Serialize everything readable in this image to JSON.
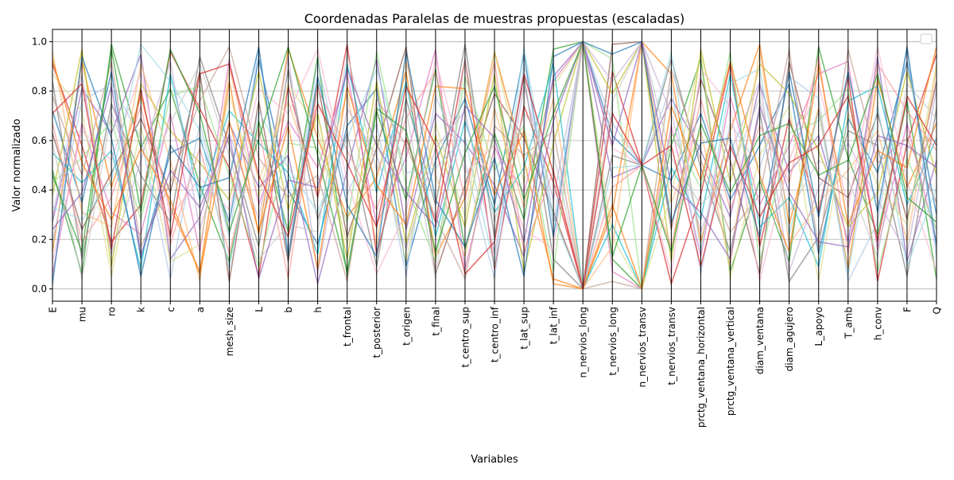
{
  "chart_data": {
    "type": "parallel-coordinates",
    "title": "Coordenadas Paralelas de muestras propuestas (escaladas)",
    "xlabel": "Variables",
    "ylabel": "Valor normalizado",
    "ylim": [
      -0.05,
      1.05
    ],
    "yticks": [
      0.0,
      0.2,
      0.4,
      0.6,
      0.8,
      1.0
    ],
    "ytick_labels": [
      "0.0",
      "0.2",
      "0.4",
      "0.6",
      "0.8",
      "1.0"
    ],
    "categories": [
      "E",
      "mu",
      "ro",
      "k",
      "c",
      "a",
      "mesh_size",
      "L",
      "b",
      "h",
      "t_frontal",
      "t_posterior",
      "t_origen",
      "t_final",
      "t_centro_sup",
      "t_centro_inf",
      "t_lat_sup",
      "t_lat_inf",
      "n_nervios_long",
      "t_nervios_long",
      "n_nervios_transv",
      "t_nervios_transv",
      "prctg_ventana_horizontal",
      "prctg_ventana_vertical",
      "diam_ventana",
      "diam_agujero",
      "L_apoyo",
      "T_amb",
      "h_conv",
      "F",
      "Q"
    ],
    "grid": true,
    "legend": "top-right, empty",
    "series_colors": [
      "#1f77b4",
      "#ff7f0e",
      "#2ca02c",
      "#d62728",
      "#9467bd",
      "#8c564b",
      "#e377c2",
      "#7f7f7f",
      "#bcbd22",
      "#17becf",
      "#aec7e8",
      "#ffbb78",
      "#98df8a",
      "#ff9896",
      "#c5b0d5",
      "#c49c94",
      "#f7b6d2",
      "#c7c7c7",
      "#dbdb8d",
      "#9edae5"
    ],
    "series": [
      {
        "values": [
          0.72,
          0.35,
          0.88,
          0.12,
          0.55,
          0.61,
          0.27,
          0.93,
          0.4,
          0.18,
          0.66,
          0.81,
          0.09,
          0.52,
          0.77,
          0.34,
          0.95,
          0.21,
          1.0,
          0.62,
          0.5,
          0.44,
          0.71,
          0.36,
          0.58,
          0.83,
          0.14,
          0.69,
          0.47,
          0.92,
          0.3
        ]
      },
      {
        "values": [
          0.15,
          0.92,
          0.41,
          0.78,
          0.33,
          0.07,
          0.84,
          0.22,
          0.97,
          0.61,
          0.29,
          0.45,
          0.88,
          0.13,
          0.37,
          0.96,
          0.52,
          0.04,
          0.0,
          0.31,
          1.0,
          0.87,
          0.19,
          0.64,
          0.99,
          0.26,
          0.73,
          0.08,
          0.85,
          0.41,
          0.67
        ]
      },
      {
        "values": [
          0.48,
          0.06,
          0.99,
          0.57,
          0.81,
          0.42,
          0.11,
          0.68,
          0.23,
          0.94,
          0.05,
          0.72,
          0.36,
          0.89,
          0.16,
          0.63,
          0.28,
          0.97,
          1.0,
          0.12,
          0.0,
          0.58,
          0.93,
          0.07,
          0.44,
          0.11,
          0.98,
          0.53,
          0.22,
          0.76,
          0.04
        ]
      },
      {
        "values": [
          0.91,
          0.58,
          0.19,
          0.34,
          0.96,
          0.73,
          0.49,
          0.05,
          0.82,
          0.37,
          0.99,
          0.14,
          0.61,
          0.27,
          0.93,
          0.08,
          0.74,
          0.43,
          0.0,
          0.88,
          0.5,
          0.02,
          0.38,
          0.91,
          0.17,
          0.69,
          0.31,
          0.86,
          0.03,
          0.59,
          0.95
        ]
      },
      {
        "values": [
          0.27,
          0.81,
          0.63,
          0.95,
          0.12,
          0.29,
          0.67,
          0.41,
          0.54,
          0.02,
          0.48,
          0.93,
          0.24,
          0.71,
          0.59,
          0.42,
          0.13,
          0.68,
          1.0,
          0.45,
          0.5,
          0.77,
          0.56,
          0.29,
          0.83,
          0.47,
          0.62,
          0.19,
          0.94,
          0.11,
          0.52
        ]
      },
      {
        "values": [
          0.63,
          0.24,
          0.47,
          0.69,
          0.39,
          0.88,
          0.03,
          0.76,
          0.11,
          0.83,
          0.21,
          0.57,
          0.98,
          0.06,
          0.42,
          0.79,
          0.61,
          0.31,
          0.0,
          0.99,
          1.0,
          0.24,
          0.85,
          0.52,
          0.06,
          0.92,
          0.45,
          0.37,
          0.71,
          0.28,
          0.84
        ]
      },
      {
        "values": [
          0.06,
          0.67,
          0.31,
          0.22,
          0.71,
          0.15,
          0.93,
          0.34,
          0.68,
          0.49,
          0.87,
          0.26,
          0.53,
          0.97,
          0.08,
          0.57,
          0.39,
          0.84,
          1.0,
          0.07,
          0.0,
          0.66,
          0.13,
          0.78,
          0.34,
          0.58,
          0.87,
          0.92,
          0.16,
          0.67,
          0.19
        ]
      },
      {
        "values": [
          0.84,
          0.12,
          0.75,
          0.46,
          0.27,
          0.94,
          0.58,
          0.17,
          0.89,
          0.28,
          0.63,
          0.09,
          0.77,
          0.34,
          0.99,
          0.21,
          0.86,
          0.12,
          0.0,
          0.54,
          0.5,
          0.93,
          0.49,
          0.15,
          0.72,
          0.03,
          0.21,
          0.64,
          0.58,
          0.05,
          0.73
        ]
      },
      {
        "values": [
          0.38,
          0.97,
          0.09,
          0.83,
          0.64,
          0.51,
          0.36,
          0.88,
          0.32,
          0.71,
          0.12,
          0.84,
          0.18,
          0.62,
          0.25,
          0.87,
          0.07,
          0.59,
          1.0,
          0.79,
          1.0,
          0.11,
          0.97,
          0.43,
          0.91,
          0.79,
          0.56,
          0.25,
          0.39,
          0.88,
          0.46
        ]
      },
      {
        "values": [
          0.55,
          0.43,
          0.56,
          0.08,
          0.87,
          0.36,
          0.72,
          0.59,
          0.47,
          0.14,
          0.91,
          0.39,
          0.84,
          0.21,
          0.68,
          0.31,
          0.49,
          0.91,
          0.0,
          0.26,
          0.0,
          0.49,
          0.28,
          0.87,
          0.25,
          0.37,
          0.09,
          0.76,
          0.82,
          0.34,
          0.61
        ]
      },
      {
        "values": [
          0.19,
          0.76,
          0.83,
          0.61,
          0.04,
          0.67,
          0.21,
          0.97,
          0.15,
          0.92,
          0.38,
          0.67,
          0.05,
          0.78,
          0.51,
          0.04,
          0.91,
          0.26,
          1.0,
          0.67,
          0.5,
          0.82,
          0.06,
          0.67,
          0.49,
          0.86,
          0.77,
          0.03,
          0.27,
          0.97,
          0.13
        ]
      },
      {
        "values": [
          0.96,
          0.31,
          0.25,
          0.91,
          0.52,
          0.03,
          0.89,
          0.44,
          0.76,
          0.39,
          0.79,
          0.18,
          0.92,
          0.46,
          0.13,
          0.73,
          0.33,
          0.77,
          0.0,
          0.17,
          1.0,
          0.35,
          0.64,
          0.09,
          0.97,
          0.18,
          0.35,
          0.48,
          0.64,
          0.19,
          0.89
        ]
      },
      {
        "values": [
          0.43,
          0.53,
          0.68,
          0.28,
          0.78,
          0.82,
          0.46,
          0.09,
          0.59,
          0.57,
          0.27,
          0.96,
          0.42,
          0.11,
          0.86,
          0.48,
          0.66,
          0.07,
          1.0,
          0.93,
          0.0,
          0.63,
          0.41,
          0.96,
          0.11,
          0.63,
          0.68,
          0.81,
          0.07,
          0.53,
          0.24
        ]
      },
      {
        "values": [
          0.67,
          0.19,
          0.37,
          0.74,
          0.18,
          0.57,
          0.14,
          0.65,
          0.04,
          0.81,
          0.56,
          0.32,
          0.69,
          0.88,
          0.36,
          0.92,
          0.15,
          0.48,
          0.0,
          0.41,
          0.5,
          0.17,
          0.77,
          0.32,
          0.66,
          0.43,
          0.94,
          0.14,
          0.91,
          0.72,
          0.56
        ]
      },
      {
        "values": [
          0.29,
          0.87,
          0.14,
          0.52,
          0.92,
          0.24,
          0.63,
          0.28,
          0.94,
          0.06,
          0.73,
          0.54,
          0.16,
          0.57,
          0.72,
          0.14,
          0.82,
          0.36,
          1.0,
          0.84,
          1.0,
          0.71,
          0.23,
          0.55,
          0.84,
          0.07,
          0.41,
          0.59,
          0.36,
          0.14,
          0.81
        ]
      },
      {
        "values": [
          0.78,
          0.46,
          0.92,
          0.17,
          0.43,
          0.76,
          0.98,
          0.53,
          0.37,
          0.46,
          0.03,
          0.77,
          0.58,
          0.29,
          0.04,
          0.66,
          0.54,
          0.64,
          0.0,
          0.03,
          0.0,
          0.89,
          0.52,
          0.23,
          0.38,
          0.97,
          0.16,
          0.97,
          0.51,
          0.61,
          0.35
        ]
      },
      {
        "values": [
          0.11,
          0.64,
          0.52,
          0.88,
          0.29,
          0.45,
          0.32,
          0.81,
          0.71,
          0.97,
          0.44,
          0.06,
          0.31,
          0.93,
          0.47,
          0.58,
          0.24,
          0.16,
          1.0,
          0.57,
          0.5,
          0.06,
          0.89,
          0.74,
          0.03,
          0.52,
          0.83,
          0.33,
          0.98,
          0.44,
          0.07
        ]
      },
      {
        "values": [
          0.59,
          0.04,
          0.71,
          0.39,
          0.67,
          0.91,
          0.54,
          0.12,
          0.26,
          0.23,
          0.95,
          0.48,
          0.73,
          0.04,
          0.93,
          0.27,
          0.71,
          0.55,
          0.0,
          0.76,
          1.0,
          0.53,
          0.34,
          0.47,
          0.77,
          0.31,
          0.52,
          0.44,
          0.13,
          0.83,
          0.69
        ]
      },
      {
        "values": [
          0.87,
          0.72,
          0.05,
          0.66,
          0.11,
          0.18,
          0.79,
          0.37,
          0.83,
          0.65,
          0.18,
          0.62,
          0.11,
          0.67,
          0.29,
          0.96,
          0.43,
          0.82,
          1.0,
          0.21,
          0.0,
          0.38,
          0.96,
          0.04,
          0.54,
          0.74,
          0.03,
          0.71,
          0.42,
          0.26,
          0.91
        ]
      },
      {
        "values": [
          0.33,
          0.28,
          0.44,
          0.99,
          0.84,
          0.64,
          0.08,
          0.72,
          0.49,
          0.31,
          0.61,
          0.89,
          0.47,
          0.49,
          0.61,
          0.09,
          0.98,
          0.29,
          0.0,
          0.49,
          0.5,
          0.96,
          0.15,
          0.83,
          0.89,
          0.22,
          0.72,
          0.06,
          0.74,
          0.09,
          0.41
        ]
      },
      {
        "values": [
          0.02,
          0.94,
          0.61,
          0.05,
          0.58,
          0.41,
          0.45,
          0.98,
          0.13,
          0.86,
          0.34,
          0.13,
          0.96,
          0.36,
          0.17,
          0.53,
          0.05,
          0.94,
          1.0,
          0.95,
          1.0,
          0.27,
          0.59,
          0.61,
          0.21,
          0.88,
          0.29,
          0.88,
          0.31,
          0.98,
          0.17
        ]
      },
      {
        "values": [
          0.93,
          0.51,
          0.28,
          0.57,
          0.36,
          0.06,
          0.68,
          0.23,
          0.66,
          0.08,
          0.82,
          0.42,
          0.26,
          0.82,
          0.81,
          0.38,
          0.64,
          0.02,
          0.0,
          0.34,
          0.0,
          0.74,
          0.44,
          0.92,
          0.46,
          0.15,
          0.91,
          0.26,
          0.56,
          0.49,
          0.98
        ]
      },
      {
        "values": [
          0.46,
          0.15,
          0.97,
          0.31,
          0.97,
          0.71,
          0.23,
          0.61,
          0.98,
          0.54,
          0.07,
          0.73,
          0.64,
          0.15,
          0.55,
          0.82,
          0.36,
          0.71,
          1.0,
          0.13,
          0.5,
          0.15,
          0.67,
          0.39,
          0.62,
          0.67,
          0.46,
          0.52,
          0.87,
          0.37,
          0.27
        ]
      },
      {
        "values": [
          0.71,
          0.83,
          0.16,
          0.81,
          0.21,
          0.87,
          0.91,
          0.46,
          0.21,
          0.75,
          0.51,
          0.25,
          0.82,
          0.58,
          0.06,
          0.19,
          0.87,
          0.47,
          0.0,
          0.71,
          0.5,
          0.58,
          0.09,
          0.58,
          0.29,
          0.51,
          0.58,
          0.78,
          0.19,
          0.78,
          0.58
        ]
      },
      {
        "values": [
          0.24,
          0.39,
          0.82,
          0.14,
          0.48,
          0.33,
          0.62,
          0.04,
          0.44,
          0.41,
          0.89,
          0.58,
          0.39,
          0.25,
          0.74,
          0.61,
          0.19,
          0.86,
          1.0,
          0.58,
          1.0,
          0.42,
          0.31,
          0.12,
          0.74,
          0.39,
          0.19,
          0.17,
          0.62,
          0.58,
          0.49
        ]
      }
    ]
  }
}
